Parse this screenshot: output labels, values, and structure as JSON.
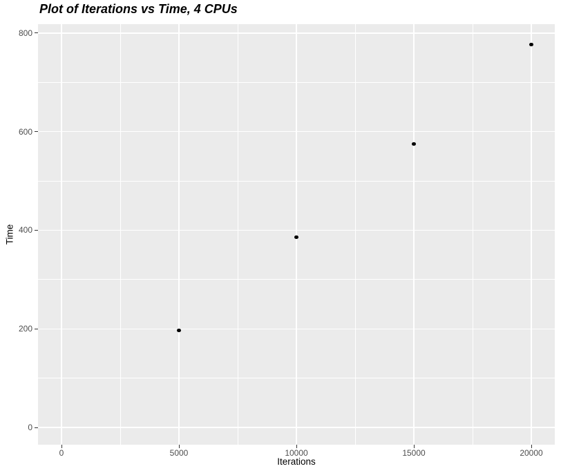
{
  "chart_data": {
    "type": "scatter",
    "title": "Plot of Iterations vs Time, 4 CPUs",
    "xlabel": "Iterations",
    "ylabel": "Time",
    "points": [
      {
        "x": 5000,
        "y": 197
      },
      {
        "x": 10000,
        "y": 386
      },
      {
        "x": 15000,
        "y": 575
      },
      {
        "x": 20000,
        "y": 777
      }
    ],
    "xlim": [
      -1000,
      21000
    ],
    "ylim": [
      -35,
      818
    ],
    "x_major_ticks": [
      0,
      5000,
      10000,
      15000,
      20000
    ],
    "x_tick_labels": [
      "0",
      "5000",
      "10000",
      "15000",
      "20000"
    ],
    "x_minor_ticks": [
      2500,
      7500,
      12500,
      17500
    ],
    "y_major_ticks": [
      0,
      200,
      400,
      600,
      800
    ],
    "y_tick_labels": [
      "0",
      "200",
      "400",
      "600",
      "800"
    ],
    "y_minor_ticks": [
      100,
      300,
      500,
      700
    ],
    "grid": true,
    "legend": "none",
    "colors": {
      "panel_bg": "#EBEBEB",
      "gridline": "#FFFFFF",
      "point": "#000000",
      "tick_text": "#4D4D4D",
      "tick_mark": "#333333",
      "title_text": "#000000",
      "axis_title_text": "#000000",
      "figure_bg": "#FFFFFF"
    }
  }
}
